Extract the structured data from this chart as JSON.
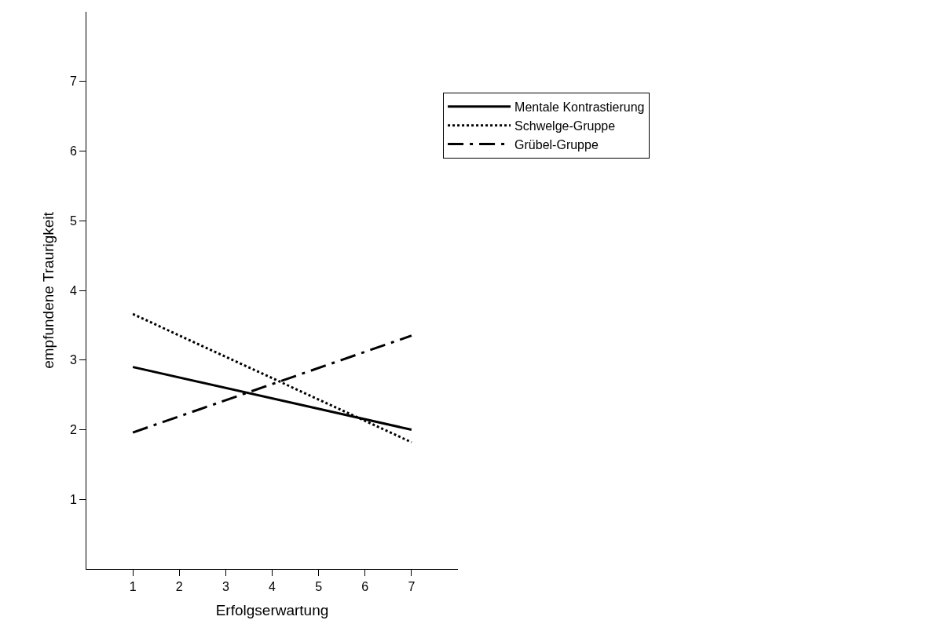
{
  "chart_data": {
    "type": "line",
    "xlabel": "Erfolgserwartung",
    "ylabel": "empfundene Traurigkeit",
    "x": [
      1,
      7
    ],
    "series": [
      {
        "name": "Mentale Kontrastierung",
        "color": "#000000",
        "values": [
          2.9,
          2.0
        ],
        "line_style": "solid"
      },
      {
        "name": "Schwelge-Gruppe",
        "color": "#000000",
        "values": [
          3.66,
          1.82
        ],
        "line_style": "dotted"
      },
      {
        "name": "Grübel-Gruppe",
        "color": "#000000",
        "values": [
          1.96,
          3.35
        ],
        "line_style": "dashdot"
      }
    ],
    "xlim": [
      0,
      8
    ],
    "xticks": [
      1,
      2,
      3,
      4,
      5,
      6,
      7
    ],
    "ylim": [
      0,
      8
    ],
    "yticks": [
      1,
      2,
      3,
      4,
      5,
      6,
      7
    ],
    "legend": "right",
    "marker": "none"
  }
}
